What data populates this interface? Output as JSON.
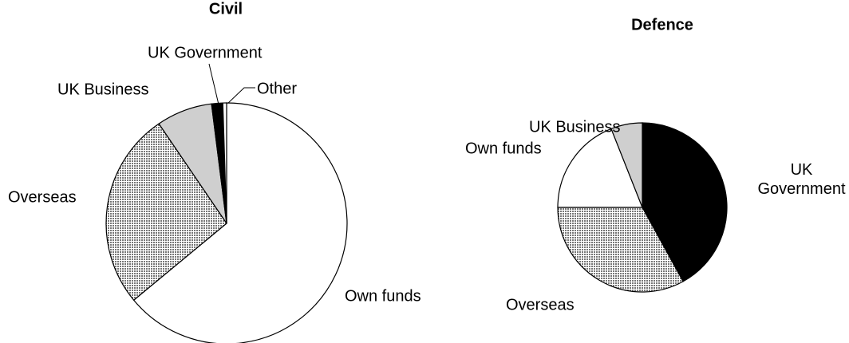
{
  "chart_data": [
    {
      "type": "pie",
      "title": "Civil",
      "categories": [
        "Own funds",
        "Overseas",
        "UK Business",
        "UK Government",
        "Other"
      ],
      "values": [
        64,
        26.5,
        7.5,
        1.5,
        0.5
      ],
      "colors": [
        "#ffffff",
        "#9a9a9a",
        "#cfcfcf",
        "#000000",
        "#ffffff"
      ]
    },
    {
      "type": "pie",
      "title": "Defence",
      "categories": [
        "UK Government",
        "Overseas",
        "Own funds",
        "UK Business"
      ],
      "values": [
        42,
        33,
        19,
        6
      ],
      "colors": [
        "#000000",
        "#9a9a9a",
        "#ffffff",
        "#cfcfcf"
      ]
    }
  ]
}
